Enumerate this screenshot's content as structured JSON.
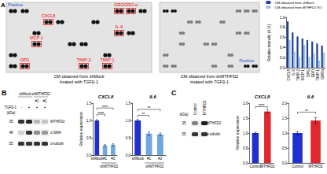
{
  "figure": {
    "panel_a": {
      "label": "A",
      "arrays": [
        {
          "caption": [
            "CM obtained from shMock",
            "treated with TGFβ-1"
          ],
          "spot_labels": [
            "Positive",
            "GRO",
            "GRO-α",
            "CXCL8",
            "IL-6",
            "MCP-1",
            "OPG",
            "TIMP-2",
            "TIMP-1"
          ]
        },
        {
          "caption": [
            "CM obtained from shMTHFD2",
            "treated with TGFβ-1"
          ],
          "spot_labels": [
            "Positive"
          ]
        }
      ]
    },
    "panel_b": {
      "label": "B",
      "blot": {
        "kda_unit": "(kDa)",
        "treatment_label": "TGFβ-1",
        "lanes": [
          {
            "group": "shMock",
            "treatment": "-"
          },
          {
            "group": "shMock",
            "treatment": "+"
          },
          {
            "group": "shMTHFD2",
            "name": "#1",
            "treatment": "+"
          },
          {
            "group": "shMTHFD2",
            "name": "#2",
            "treatment": "+"
          }
        ],
        "rows": [
          {
            "protein": "MTHFD2",
            "kda": "35"
          },
          {
            "protein": "α-SMA",
            "kda": "48"
          },
          {
            "protein": "α-tubulin",
            "kda": "55"
          }
        ]
      }
    },
    "panel_c": {
      "label": "C",
      "blot": {
        "kda_unit": "(kDa)",
        "lanes": [
          {
            "name": "Control"
          },
          {
            "name": "MTHFD2"
          }
        ],
        "rows": [
          {
            "protein": "MTHFD2",
            "kda": "35"
          },
          {
            "protein": "α-tubulin",
            "kda": "55"
          }
        ]
      }
    }
  },
  "chart_data": [
    {
      "type": "bar",
      "ylabel": "Relative intensity (A.U.)",
      "categories": [
        "CXCL8",
        "IL-6",
        "TIMP-2",
        "MCP-1",
        "OPG",
        "GRO",
        "TIMP-1",
        "GROα"
      ],
      "series": [
        {
          "name": "CM obtained from shMock",
          "color": "#1f3f9a",
          "values": [
            0.92,
            0.7,
            0.62,
            0.58,
            0.55,
            0.52,
            0.48,
            0.44
          ]
        },
        {
          "name": "CM obtained from MTHFD2 KO",
          "color": "#9dc3e6",
          "values": [
            0.55,
            0.32,
            0.2,
            0.45,
            0.22,
            0.28,
            0.14,
            0.3
          ]
        }
      ],
      "ylim": [
        0,
        1
      ],
      "yticks": [
        {
          "value": 0,
          "label": "0.0"
        },
        0.2,
        0.4,
        0.6,
        0.8,
        {
          "value": 1,
          "label": "1.0"
        }
      ],
      "legend": "top",
      "grid": false
    },
    {
      "type": "bar",
      "title": "CXCL8",
      "ylabel": "Relative expression",
      "categories": [
        "shMock",
        "#1",
        "#2"
      ],
      "values": [
        1,
        0.28,
        0.3
      ],
      "errors": [
        0.03,
        0.03,
        0.03
      ],
      "colors": [
        "#1f2fd0",
        "#6fa8dc",
        "#6fa8dc"
      ],
      "xlabel": {
        "text": "shMTHFD2",
        "categories": [
          "#1",
          "#2"
        ]
      },
      "annotations": [
        {
          "from": "shMock",
          "to": "#1",
          "y": 1.18,
          "text": "****"
        },
        {
          "from": "shMock",
          "to": "#2",
          "y": 1.36,
          "text": "****"
        }
      ],
      "ylim": [
        0,
        1.5
      ],
      "yticks": [
        {
          "value": 0,
          "label": "0.0"
        },
        0.5,
        {
          "value": 1,
          "label": "1.0"
        },
        1.5
      ],
      "grid": false
    },
    {
      "type": "bar",
      "title": "IL6",
      "categories": [
        "shMock",
        "#1",
        "#2"
      ],
      "values": [
        1,
        0.62,
        0.6
      ],
      "errors": [
        0.03,
        0.05,
        0.04
      ],
      "colors": [
        "#1f2fd0",
        "#6fa8dc",
        "#6fa8dc"
      ],
      "xlabel": {
        "text": "shMTHFD2",
        "categories": [
          "#1",
          "#2"
        ]
      },
      "annotations": [
        {
          "from": "shMock",
          "to": "#1",
          "y": 1.15,
          "text": "**"
        },
        {
          "from": "shMock",
          "to": "#2",
          "y": 1.32,
          "text": "**"
        }
      ],
      "ylim": [
        0,
        1.5
      ],
      "yticks": [
        {
          "value": 0,
          "label": "0.0"
        },
        0.5,
        {
          "value": 1,
          "label": "1.0"
        },
        1.5
      ],
      "grid": false
    },
    {
      "type": "bar",
      "title": "CXCL8",
      "ylabel": "Relative expression",
      "categories": [
        "Control",
        "MTHFD2"
      ],
      "values": [
        1,
        1.72
      ],
      "errors": [
        0.03,
        0.05
      ],
      "colors": [
        "#1f2fd0",
        "#e0282e"
      ],
      "annotations": [
        {
          "from": "Control",
          "to": "MTHFD2",
          "y": 1.88,
          "text": "****"
        }
      ],
      "ylim": [
        0,
        2
      ],
      "yticks": [
        {
          "value": 0,
          "label": "0.0"
        },
        0.5,
        {
          "value": 1,
          "label": "1.0"
        },
        1.5,
        {
          "value": 2,
          "label": "2.0"
        }
      ],
      "grid": false
    },
    {
      "type": "bar",
      "title": "IL6",
      "categories": [
        "Control",
        "MTHFD2"
      ],
      "values": [
        1,
        1.42
      ],
      "errors": [
        0.05,
        0.1
      ],
      "colors": [
        "#1f2fd0",
        "#e0282e"
      ],
      "annotations": [
        {
          "from": "Control",
          "to": "MTHFD2",
          "y": 1.7,
          "text": "**"
        }
      ],
      "ylim": [
        0,
        2
      ],
      "yticks": [
        {
          "value": 0,
          "label": "0.0"
        },
        0.5,
        {
          "value": 1,
          "label": "1.0"
        },
        1.5,
        {
          "value": 2,
          "label": "2.0"
        }
      ],
      "grid": false
    }
  ]
}
